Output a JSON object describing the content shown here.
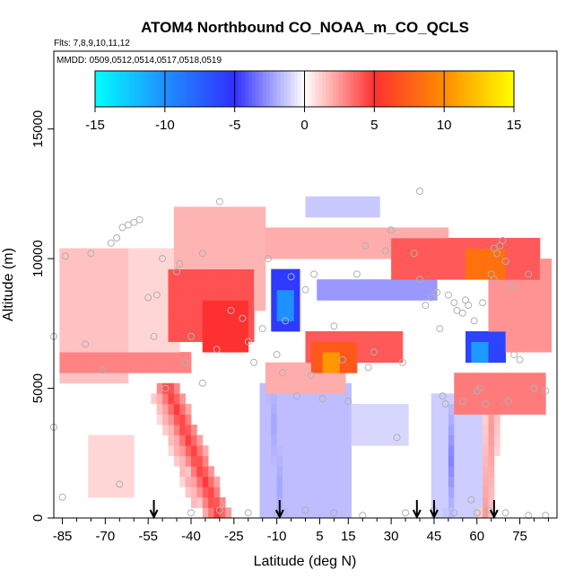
{
  "chart_data": {
    "type": "heatmap",
    "title": "ATOM4 Northbound CO_NOAA_m_CO_QCLS",
    "subtitle_flights": "Flts: 7,8,9,10,11,12",
    "subtitle_mmdd": "MMDD: 0509,0512,0514,0517,0518,0519",
    "xlabel": "Latitude (deg N)",
    "ylabel": "Altitude (m)",
    "xlim": [
      -88,
      88
    ],
    "ylim": [
      0,
      18000
    ],
    "x_ticks": [
      -85,
      -70,
      -55,
      -40,
      -25,
      -10,
      5,
      15,
      30,
      45,
      60,
      75
    ],
    "y_ticks": [
      0,
      5000,
      10000,
      15000
    ],
    "colorbar": {
      "ticks": [
        -15,
        -10,
        -5,
        0,
        5,
        10,
        15
      ],
      "range": [
        -15,
        15
      ],
      "colors": {
        "-15": "#00ffff",
        "-10": "#1e90ff",
        "-5": "#3030ff",
        "0": "#ffffff",
        "5": "#ff3030",
        "10": "#ff8c00",
        "15": "#ffff00"
      }
    },
    "regions": [
      {
        "lat0": -86,
        "lat1": -62,
        "alt0": 5200,
        "alt1": 10500,
        "value": 1.5
      },
      {
        "lat0": -62,
        "lat1": -45,
        "alt0": 5800,
        "alt1": 10400,
        "value": 1.0
      },
      {
        "lat0": -45,
        "lat1": -14,
        "alt0": 8200,
        "alt1": 12000,
        "value": 1.8
      },
      {
        "lat0": -48,
        "lat1": -18,
        "alt0": 7000,
        "alt1": 9400,
        "value": 4.2
      },
      {
        "lat0": -36,
        "lat1": -20,
        "alt0": 6600,
        "alt1": 8200,
        "value": 5.0
      },
      {
        "lat0": -86,
        "lat1": -40,
        "alt0": 5700,
        "alt1": 6300,
        "value": 3.0
      },
      {
        "lat0": -14,
        "lat1": 50,
        "alt0": 9900,
        "alt1": 11000,
        "value": 2.0
      },
      {
        "lat0": 30,
        "lat1": 82,
        "alt0": 9300,
        "alt1": 10800,
        "value": 4.0
      },
      {
        "lat0": 57,
        "lat1": 70,
        "alt0": 9300,
        "alt1": 10200,
        "value": 8.5
      },
      {
        "lat0": 65,
        "lat1": 85,
        "alt0": 6500,
        "alt1": 10000,
        "value": 2.6
      },
      {
        "lat0": 1,
        "lat1": 33,
        "alt0": 6200,
        "alt1": 7000,
        "value": 4.0
      },
      {
        "lat0": 3,
        "lat1": 18,
        "alt0": 5700,
        "alt1": 6600,
        "value": 7.2
      },
      {
        "lat0": 6,
        "lat1": 12,
        "alt0": 5800,
        "alt1": 6500,
        "value": 10.5
      },
      {
        "lat0": -14,
        "lat1": 13,
        "alt0": 5000,
        "alt1": 5800,
        "value": 2.0
      },
      {
        "lat0": 53,
        "lat1": 84,
        "alt0": 4000,
        "alt1": 5400,
        "value": 3.2
      },
      {
        "lat0": -12,
        "lat1": -3,
        "alt0": 7400,
        "alt1": 9500,
        "value": -5.5
      },
      {
        "lat0": -10,
        "lat1": -5,
        "alt0": 7700,
        "alt1": 8600,
        "value": -10.0
      },
      {
        "lat0": 5,
        "lat1": 45,
        "alt0": 8500,
        "alt1": 9000,
        "value": -2.5
      },
      {
        "lat0": 56,
        "lat1": 70,
        "alt0": 5900,
        "alt1": 7000,
        "value": -6.0
      },
      {
        "lat0": 59,
        "lat1": 64,
        "alt0": 6000,
        "alt1": 6600,
        "value": -10.5
      },
      {
        "lat0": -15,
        "lat1": 15,
        "alt0": 0,
        "alt1": 5200,
        "value": -1.6
      },
      {
        "lat0": 15,
        "lat1": 35,
        "alt0": 2800,
        "alt1": 4200,
        "value": -1.0
      },
      {
        "lat0": 45,
        "lat1": 62,
        "alt0": 0,
        "alt1": 4800,
        "value": -1.2
      },
      {
        "lat0": -75,
        "lat1": -60,
        "alt0": 1000,
        "alt1": 3200,
        "value": 1.0
      },
      {
        "lat0": 0,
        "lat1": 25,
        "alt0": 11800,
        "alt1": 12400,
        "value": -1.3
      }
    ],
    "plumes": [
      {
        "lat_bottom": -30,
        "lat_top": -48,
        "alt_bottom": 0,
        "alt_top": 5000,
        "half_width": 4.5,
        "value": 4.8
      },
      {
        "lat_bottom": -38,
        "lat_top": -52,
        "alt_bottom": 500,
        "alt_top": 4800,
        "half_width": 2.5,
        "value": 2.0
      },
      {
        "lat_bottom": -8,
        "lat_top": -12,
        "alt_bottom": 0,
        "alt_top": 4800,
        "half_width": 3,
        "value": -2.2
      },
      {
        "lat_bottom": 50,
        "lat_top": 52,
        "alt_bottom": 0,
        "alt_top": 4500,
        "half_width": 1.2,
        "value": -3.0
      },
      {
        "lat_bottom": 63,
        "lat_top": 66,
        "alt_bottom": 0,
        "alt_top": 5000,
        "half_width": 2.5,
        "value": 2.5
      }
    ],
    "arrows_latitude": [
      -53,
      -9,
      39,
      45,
      66
    ],
    "sample_points": [
      [
        -84,
        10100
      ],
      [
        -75,
        10200
      ],
      [
        -68,
        10600
      ],
      [
        -66,
        10800
      ],
      [
        -64,
        11200
      ],
      [
        -62,
        11300
      ],
      [
        -60,
        11400
      ],
      [
        -58,
        11500
      ],
      [
        -55,
        8500
      ],
      [
        -52,
        8600
      ],
      [
        -50,
        10000
      ],
      [
        -45,
        9500
      ],
      [
        -44,
        9800
      ],
      [
        -42,
        6000
      ],
      [
        -40,
        7000
      ],
      [
        -36,
        10200
      ],
      [
        -30,
        12200
      ],
      [
        -26,
        8000
      ],
      [
        -22,
        7700
      ],
      [
        -20,
        6800
      ],
      [
        -15,
        7300
      ],
      [
        -13,
        10000
      ],
      [
        -10,
        6300
      ],
      [
        -7,
        7600
      ],
      [
        -5,
        9300
      ],
      [
        -3,
        4700
      ],
      [
        0,
        8800
      ],
      [
        3,
        9400
      ],
      [
        6,
        4600
      ],
      [
        10,
        7400
      ],
      [
        13,
        6100
      ],
      [
        15,
        4500
      ],
      [
        18,
        9400
      ],
      [
        21,
        10500
      ],
      [
        24,
        6400
      ],
      [
        28,
        10300
      ],
      [
        32,
        3100
      ],
      [
        34,
        6000
      ],
      [
        38,
        10200
      ],
      [
        40,
        12600
      ],
      [
        40,
        9200
      ],
      [
        42,
        8200
      ],
      [
        44,
        8500
      ],
      [
        46,
        8700
      ],
      [
        47,
        7300
      ],
      [
        48,
        4700
      ],
      [
        50,
        8600
      ],
      [
        52,
        8300
      ],
      [
        53,
        8000
      ],
      [
        55,
        7900
      ],
      [
        56,
        8400
      ],
      [
        57,
        8200
      ],
      [
        59,
        7600
      ],
      [
        60,
        4900
      ],
      [
        61,
        5000
      ],
      [
        62,
        8300
      ],
      [
        63,
        4400
      ],
      [
        65,
        9400
      ],
      [
        66,
        10400
      ],
      [
        67,
        10200
      ],
      [
        68,
        10500
      ],
      [
        69,
        10700
      ],
      [
        70,
        9900
      ],
      [
        72,
        8900
      ],
      [
        73,
        6300
      ],
      [
        75,
        6100
      ],
      [
        78,
        9400
      ],
      [
        80,
        5000
      ],
      [
        84,
        4900
      ],
      [
        -88,
        7000
      ],
      [
        -88,
        3500
      ],
      [
        -85,
        800
      ],
      [
        -65,
        1300
      ],
      [
        -40,
        200
      ],
      [
        -30,
        300
      ],
      [
        -20,
        200
      ],
      [
        -10,
        100
      ],
      [
        0,
        300
      ],
      [
        10,
        200
      ],
      [
        20,
        100
      ],
      [
        35,
        200
      ],
      [
        45,
        300
      ],
      [
        52,
        200
      ],
      [
        58,
        700
      ],
      [
        60,
        200
      ],
      [
        64,
        300
      ],
      [
        70,
        200
      ],
      [
        78,
        100
      ],
      [
        84,
        100
      ],
      [
        -36,
        5200
      ],
      [
        -8,
        5600
      ],
      [
        2,
        5500
      ],
      [
        22,
        5800
      ],
      [
        49,
        4400
      ],
      [
        55,
        4500
      ],
      [
        71,
        4500
      ],
      [
        -77,
        6700
      ],
      [
        -71,
        5700
      ],
      [
        -53,
        7000
      ],
      [
        -49,
        5000
      ],
      [
        -31,
        6500
      ],
      [
        -18,
        6000
      ],
      [
        30,
        11100
      ],
      [
        66,
        9200
      ]
    ]
  }
}
